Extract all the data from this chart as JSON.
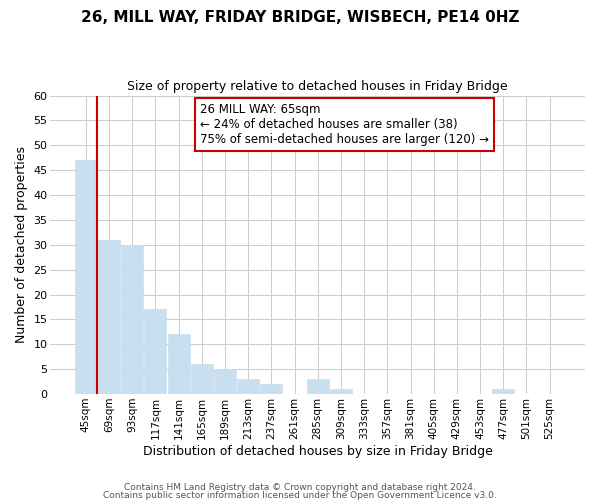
{
  "title": "26, MILL WAY, FRIDAY BRIDGE, WISBECH, PE14 0HZ",
  "subtitle": "Size of property relative to detached houses in Friday Bridge",
  "xlabel": "Distribution of detached houses by size in Friday Bridge",
  "ylabel": "Number of detached properties",
  "bar_labels": [
    "45sqm",
    "69sqm",
    "93sqm",
    "117sqm",
    "141sqm",
    "165sqm",
    "189sqm",
    "213sqm",
    "237sqm",
    "261sqm",
    "285sqm",
    "309sqm",
    "333sqm",
    "357sqm",
    "381sqm",
    "405sqm",
    "429sqm",
    "453sqm",
    "477sqm",
    "501sqm",
    "525sqm"
  ],
  "bar_values": [
    47,
    31,
    30,
    17,
    12,
    6,
    5,
    3,
    2,
    0,
    3,
    1,
    0,
    0,
    0,
    0,
    0,
    0,
    1,
    0,
    0
  ],
  "bar_color": "#c8dff0",
  "bar_edge_color": "#c8dff0",
  "ylim": [
    0,
    60
  ],
  "yticks": [
    0,
    5,
    10,
    15,
    20,
    25,
    30,
    35,
    40,
    45,
    50,
    55,
    60
  ],
  "ref_line_color": "#cc0000",
  "annotation_title": "26 MILL WAY: 65sqm",
  "annotation_line1": "← 24% of detached houses are smaller (38)",
  "annotation_line2": "75% of semi-detached houses are larger (120) →",
  "annotation_box_edge": "#cc0000",
  "footer_line1": "Contains HM Land Registry data © Crown copyright and database right 2024.",
  "footer_line2": "Contains public sector information licensed under the Open Government Licence v3.0.",
  "background_color": "#ffffff",
  "grid_color": "#cccccc"
}
